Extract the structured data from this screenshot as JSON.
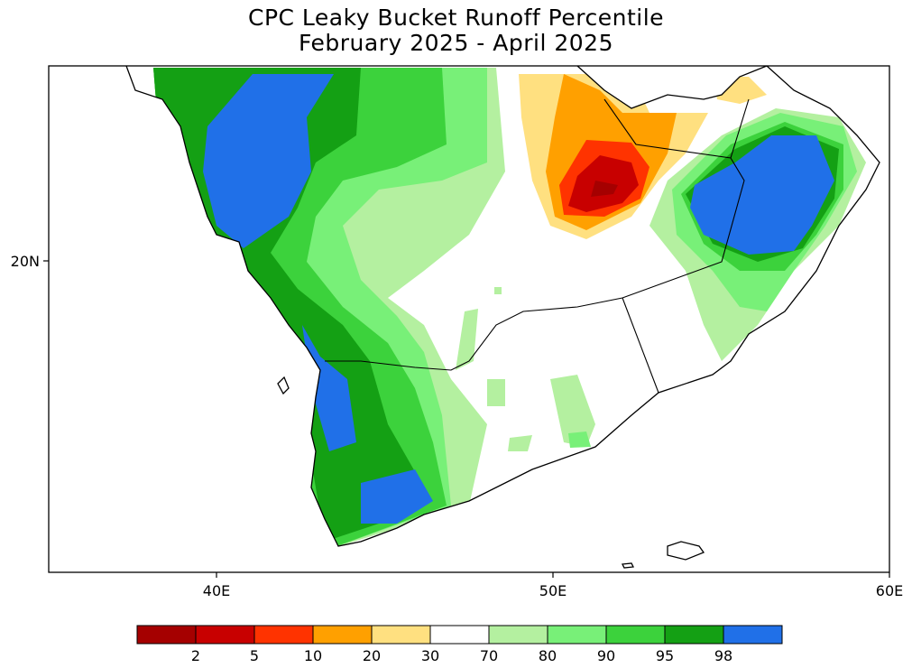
{
  "title": "CPC Leaky Bucket Runoff Percentile",
  "subtitle": "February 2025 - April 2025",
  "axes": {
    "lon_ticks": [
      "40E",
      "50E",
      "60E"
    ],
    "lat_ticks": [
      "20N"
    ]
  },
  "colorbar": {
    "labels": [
      "2",
      "5",
      "10",
      "20",
      "30",
      "70",
      "80",
      "90",
      "95",
      "98"
    ],
    "colors": [
      "#a50000",
      "#c80000",
      "#ff3300",
      "#ffa000",
      "#ffe080",
      "#ffffff",
      "#b4f0a0",
      "#78f078",
      "#3cd23c",
      "#14a014",
      "#2070e8"
    ]
  }
}
